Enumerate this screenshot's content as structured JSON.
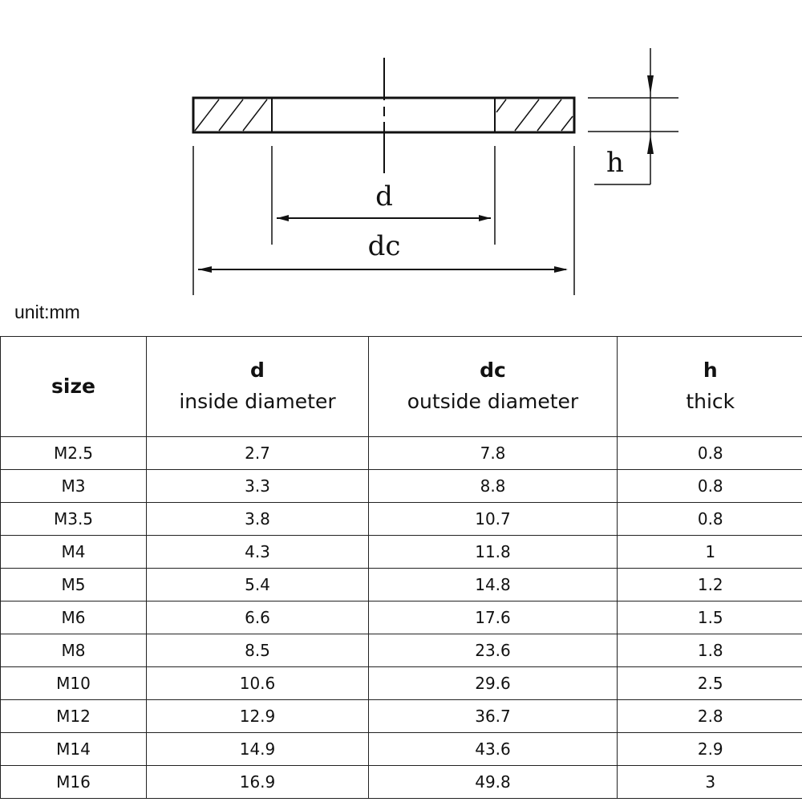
{
  "drawing": {
    "label_d": "d",
    "label_dc": "dc",
    "label_h": "h"
  },
  "unit_label": "unit:mm",
  "table": {
    "headers": [
      {
        "symbol": "size",
        "desc": ""
      },
      {
        "symbol": "d",
        "desc": "inside diameter"
      },
      {
        "symbol": "dc",
        "desc": "outside diameter"
      },
      {
        "symbol": "h",
        "desc": "thick"
      }
    ],
    "rows": [
      [
        "M2.5",
        "2.7",
        "7.8",
        "0.8"
      ],
      [
        "M3",
        "3.3",
        "8.8",
        "0.8"
      ],
      [
        "M3.5",
        "3.8",
        "10.7",
        "0.8"
      ],
      [
        "M4",
        "4.3",
        "11.8",
        "1"
      ],
      [
        "M5",
        "5.4",
        "14.8",
        "1.2"
      ],
      [
        "M6",
        "6.6",
        "17.6",
        "1.5"
      ],
      [
        "M8",
        "8.5",
        "23.6",
        "1.8"
      ],
      [
        "M10",
        "10.6",
        "29.6",
        "2.5"
      ],
      [
        "M12",
        "12.9",
        "36.7",
        "2.8"
      ],
      [
        "M14",
        "14.9",
        "43.6",
        "2.9"
      ],
      [
        "M16",
        "16.9",
        "49.8",
        "3"
      ]
    ]
  }
}
